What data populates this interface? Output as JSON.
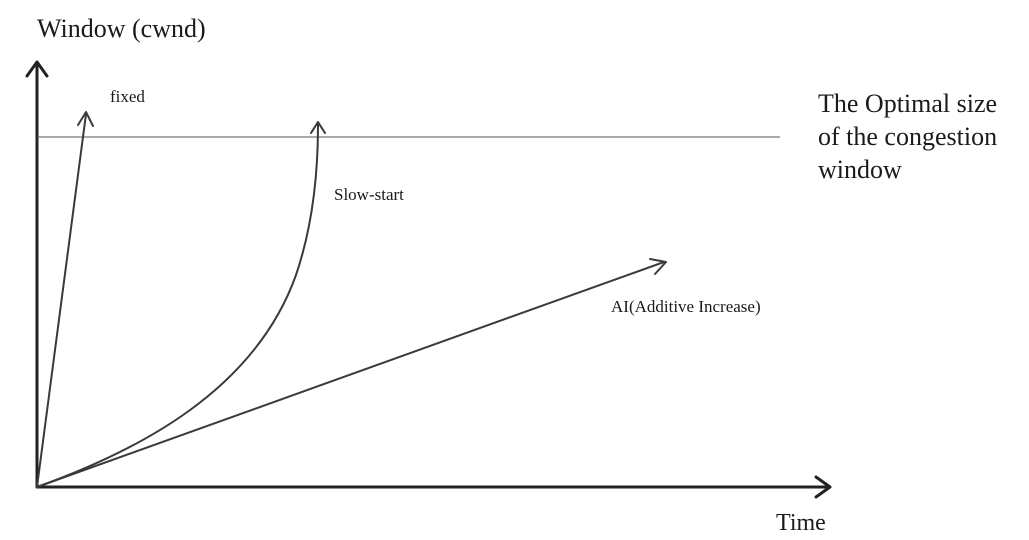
{
  "axes": {
    "y_label": "Window (cwnd)",
    "x_label": "Time"
  },
  "optimal_line": {
    "label_lines": [
      "The Optimal size",
      "of the congestion",
      "window"
    ]
  },
  "curves": {
    "fixed": "fixed",
    "slow_start": "Slow-start",
    "additive_increase": "AI(Additive Increase)"
  }
}
